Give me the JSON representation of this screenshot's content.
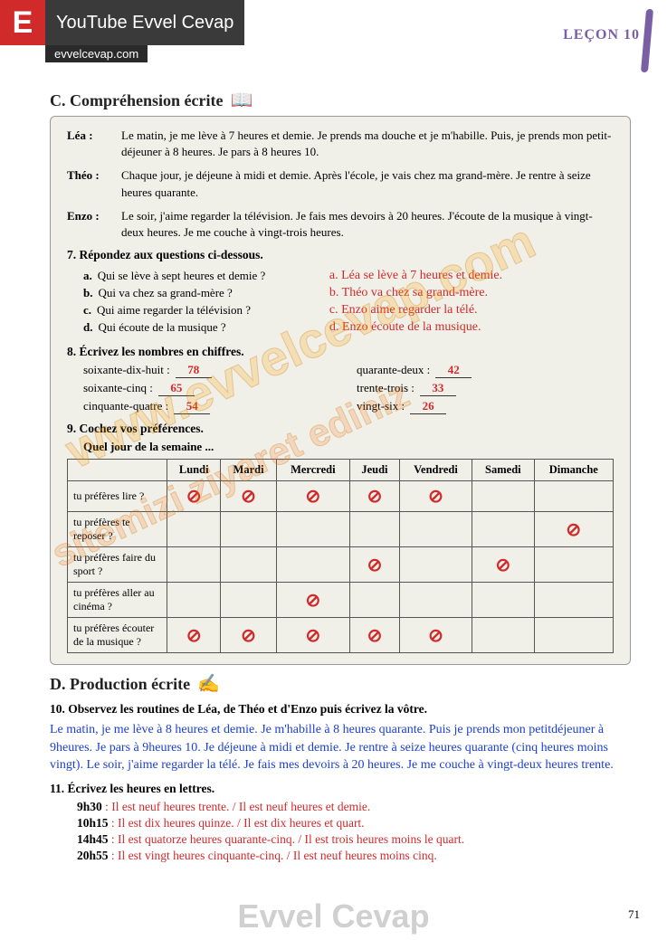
{
  "header": {
    "logo": "E",
    "yt": "YouTube Evvel Cevap",
    "url": "evvelcevap.com",
    "lecon": "LEÇON 10"
  },
  "sectionC": {
    "title": "C. Compréhension écrite",
    "icon": "📖"
  },
  "dialogues": [
    {
      "speaker": "Léa :",
      "text": "Le matin, je me lève à 7 heures et demie. Je prends ma douche et je m'habille. Puis, je prends mon petit-déjeuner à 8 heures. Je pars à 8 heures 10."
    },
    {
      "speaker": "Théo :",
      "text": "Chaque jour, je déjeune à midi et demie. Après l'école, je vais chez ma grand-mère. Je rentre à seize heures quarante."
    },
    {
      "speaker": "Enzo :",
      "text": "Le soir, j'aime regarder la télévision. Je fais mes devoirs à 20 heures. J'écoute de la musique à vingt-deux heures. Je me couche à vingt-trois heures."
    }
  ],
  "q7": {
    "title": "7. Répondez aux questions ci-dessous.",
    "items": [
      {
        "l": "a.",
        "q": "Qui se lève à sept heures et demie ?"
      },
      {
        "l": "b.",
        "q": "Qui va chez sa grand-mère ?"
      },
      {
        "l": "c.",
        "q": "Qui aime regarder la télévision ?"
      },
      {
        "l": "d.",
        "q": "Qui écoute de la musique ?"
      }
    ],
    "answers": [
      "a. Léa se lève à 7 heures et demie.",
      "b. Théo va chez sa grand-mère.",
      "c. Enzo aime regarder la télé.",
      "d. Enzo écoute de la musique."
    ]
  },
  "q8": {
    "title": "8. Écrivez les nombres en chiffres.",
    "left": [
      {
        "label": "soixante-dix-huit :",
        "val": "78"
      },
      {
        "label": "soixante-cinq :",
        "val": "65"
      },
      {
        "label": "cinquante-quatre :",
        "val": "54"
      }
    ],
    "right": [
      {
        "label": "quarante-deux :",
        "val": "42"
      },
      {
        "label": "trente-trois :",
        "val": "33"
      },
      {
        "label": "vingt-six :",
        "val": "26"
      }
    ]
  },
  "q9": {
    "title": "9. Cochez vos préférences.",
    "sub": "Quel jour de la semaine ...",
    "days": [
      "Lundi",
      "Mardi",
      "Mercredi",
      "Jeudi",
      "Vendredi",
      "Samedi",
      "Dimanche"
    ],
    "rows": [
      {
        "label": "tu préfères lire ?",
        "checks": [
          1,
          1,
          1,
          1,
          1,
          0,
          0
        ]
      },
      {
        "label": "tu préfères te reposer ?",
        "checks": [
          0,
          0,
          0,
          0,
          0,
          0,
          1
        ]
      },
      {
        "label": "tu préfères faire du sport ?",
        "checks": [
          0,
          0,
          0,
          1,
          0,
          1,
          0
        ]
      },
      {
        "label": "tu préfères aller au cinéma ?",
        "checks": [
          0,
          0,
          1,
          0,
          0,
          0,
          0
        ]
      },
      {
        "label": "tu préfères écouter de la musique ?",
        "checks": [
          1,
          1,
          1,
          1,
          1,
          0,
          0
        ]
      }
    ]
  },
  "sectionD": {
    "title": "D. Production écrite",
    "icon": "✍"
  },
  "q10": {
    "title": "10. Observez les routines de Léa, de Théo et d'Enzo puis écrivez la vôtre.",
    "text": "Le matin, je me lève à 8 heures et demie. Je m'habille à 8 heures quarante. Puis je prends mon petitdéjeuner à 9heures. Je pars à 9heures 10. Je déjeune à midi et demie. Je rentre à seize heures quarante (cinq heures moins vingt). Le soir, j'aime regarder la télé. Je fais mes devoirs à 20 heures. Je me couche à vingt-deux heures trente."
  },
  "q11": {
    "title": "11. Écrivez les heures en lettres.",
    "items": [
      {
        "t": "9h30",
        "a": ": Il est neuf heures trente. / Il est neuf heures et demie."
      },
      {
        "t": "10h15",
        "a": ": Il est dix heures quinze. / Il est dix heures et quart."
      },
      {
        "t": "14h45",
        "a": ": Il est quatorze heures quarante-cinq. / Il est trois heures moins le quart."
      },
      {
        "t": "20h55",
        "a": ": Il est vingt heures cinquante-cinq. / Il est neuf heures moins cinq."
      }
    ]
  },
  "pagenum": "71",
  "watermark": {
    "main": "www.evvelcevap.com",
    "sub": "sitemizi ziyaret ediniz",
    "bottom": "Evvel Cevap"
  }
}
